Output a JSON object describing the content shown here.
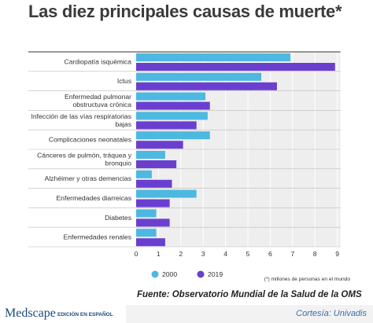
{
  "page": {
    "title": "Las diez principales causas de muerte*"
  },
  "chart_data": {
    "type": "bar",
    "orientation": "horizontal",
    "title": "Las diez principales causas de muerte*",
    "categories": [
      [
        "Cardiopatía isquémica"
      ],
      [
        "Ictus"
      ],
      [
        "Enfermedad pulmonar",
        "obstructuva crónica"
      ],
      [
        "Infección de las vías respiratorias",
        "bajas"
      ],
      [
        "Complicaciones neonatales"
      ],
      [
        "Cánceres de pulmón, tráquea y",
        "bronquio"
      ],
      [
        "Alzhéimer y otras demencias"
      ],
      [
        "Enfermedades diarreicas"
      ],
      [
        "Diabetes"
      ],
      [
        "Enfermedades renales"
      ]
    ],
    "series": [
      {
        "name": "2000",
        "color": "#4db8e0",
        "values": [
          6.9,
          5.6,
          3.1,
          3.2,
          3.3,
          1.3,
          0.7,
          2.7,
          0.9,
          0.9
        ]
      },
      {
        "name": "2019",
        "color": "#6a3fcf",
        "values": [
          8.9,
          6.3,
          3.3,
          2.7,
          2.1,
          1.8,
          1.6,
          1.5,
          1.5,
          1.3
        ]
      }
    ],
    "xlim": [
      0,
      9
    ],
    "xticks": [
      0,
      1,
      2,
      3,
      4,
      5,
      6,
      7,
      8,
      9
    ],
    "grid": true,
    "legend_position": "bottom-left",
    "note": "(*) millones de personas en el mundo"
  },
  "source": "Fuente: Observatorio Mundial de la Salud de la OMS",
  "footer": {
    "brand": "Medscape",
    "brand_sub": "EDICIÓN EN ESPAÑOL",
    "credit": "Cortesía: Univadis"
  }
}
